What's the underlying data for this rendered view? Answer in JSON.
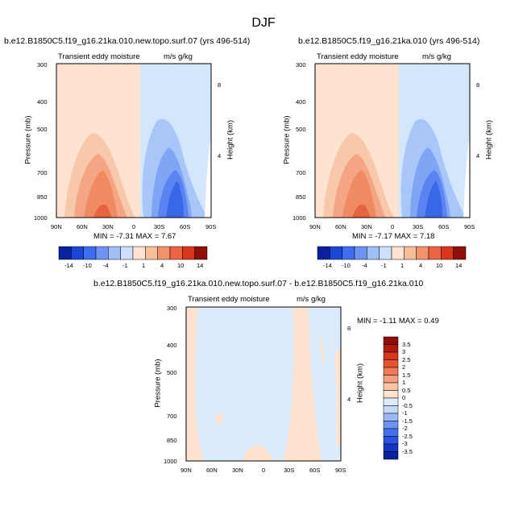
{
  "figure": {
    "title": "DJF"
  },
  "panels": [
    {
      "title": "b.e12.B1850C5.f19_g16.21ka.010.new.topo.surf.07 (yrs 496-514)",
      "left_label": "Transient eddy moisture",
      "right_label": "m/s g/kg",
      "minmax": "MIN = -7.31   MAX =  7.67"
    },
    {
      "title": "b.e12.B1850C5.f19_g16.21ka.010 (yrs 496-514)",
      "left_label": "Transient eddy moisture",
      "right_label": "m/s g/kg",
      "minmax": "MIN = -7.17   MAX =  7.18"
    },
    {
      "title": "b.e12.B1850C5.f19_g16.21ka.010.new.topo.surf.07 - b.e12.B1850C5.f19_g16.21ka.010",
      "left_label": "Transient eddy moisture",
      "right_label": "m/s g/kg",
      "minmax": "MIN = -1.11   MAX =  0.49"
    }
  ],
  "axes": {
    "ylabel": "Pressure (mb)",
    "y2label": "Height (km)"
  },
  "chart_data": [
    {
      "type": "heatmap",
      "title": "b.e12.B1850C5.f19_g16.21ka.010.new.topo.surf.07 (yrs 496-514)",
      "xlabel": "",
      "ylabel": "Pressure (mb)",
      "y2label": "Height (km)",
      "x_ticks": [
        "90N",
        "60N",
        "30N",
        "0",
        "30S",
        "60S",
        "90S"
      ],
      "y_ticks": [
        300,
        400,
        500,
        700,
        850,
        1000
      ],
      "y2_ticks": [
        8,
        4
      ],
      "y_scale": "log",
      "colorbar_labels": [
        "-14",
        "-10",
        "-4",
        "-1",
        "1",
        "4",
        "10",
        "14"
      ],
      "min": -7.31,
      "max": 7.67
    },
    {
      "type": "heatmap",
      "title": "b.e12.B1850C5.f19_g16.21ka.010 (yrs 496-514)",
      "xlabel": "",
      "ylabel": "Pressure (mb)",
      "y2label": "Height (km)",
      "x_ticks": [
        "90N",
        "60N",
        "30N",
        "0",
        "30S",
        "60S",
        "90S"
      ],
      "y_ticks": [
        300,
        400,
        500,
        700,
        850,
        1000
      ],
      "y2_ticks": [
        8,
        4
      ],
      "y_scale": "log",
      "colorbar_labels": [
        "-14",
        "-10",
        "-4",
        "-1",
        "1",
        "4",
        "10",
        "14"
      ],
      "min": -7.17,
      "max": 7.18
    },
    {
      "type": "heatmap",
      "title": "b.e12.B1850C5.f19_g16.21ka.010.new.topo.surf.07 - b.e12.B1850C5.f19_g16.21ka.010",
      "xlabel": "",
      "ylabel": "Pressure (mb)",
      "y2label": "Height (km)",
      "x_ticks": [
        "90N",
        "60N",
        "30N",
        "0",
        "30S",
        "60S",
        "90S"
      ],
      "y_ticks": [
        300,
        400,
        500,
        700,
        850,
        1000
      ],
      "y2_ticks": [
        8,
        4
      ],
      "y_scale": "log",
      "colorbar_labels": [
        "3.5",
        "3",
        "2.5",
        "2",
        "1.5",
        "1",
        "0.5",
        "0",
        "-0.5",
        "-1",
        "-1.5",
        "-2",
        "-2.5",
        "-3",
        "-3.5"
      ],
      "min": -1.11,
      "max": 0.49
    }
  ],
  "colors": {
    "cb12": [
      "#08219c",
      "#1c47d6",
      "#3f6cf0",
      "#6f93f3",
      "#a1bff7",
      "#cde0fb",
      "#fde3d0",
      "#f8bd9b",
      "#f2926b",
      "#ec6441",
      "#d9361b",
      "#8e0e0a"
    ],
    "cb16": [
      "#08219c",
      "#1234c0",
      "#2a52e0",
      "#4470f0",
      "#6d92f3",
      "#9ab8f6",
      "#c6dbfa",
      "#ddecfc",
      "#fde3d0",
      "#f9c5a7",
      "#f4a07e",
      "#ee7a56",
      "#e6552f",
      "#d9361b",
      "#b21c10",
      "#8e0e0a"
    ]
  }
}
